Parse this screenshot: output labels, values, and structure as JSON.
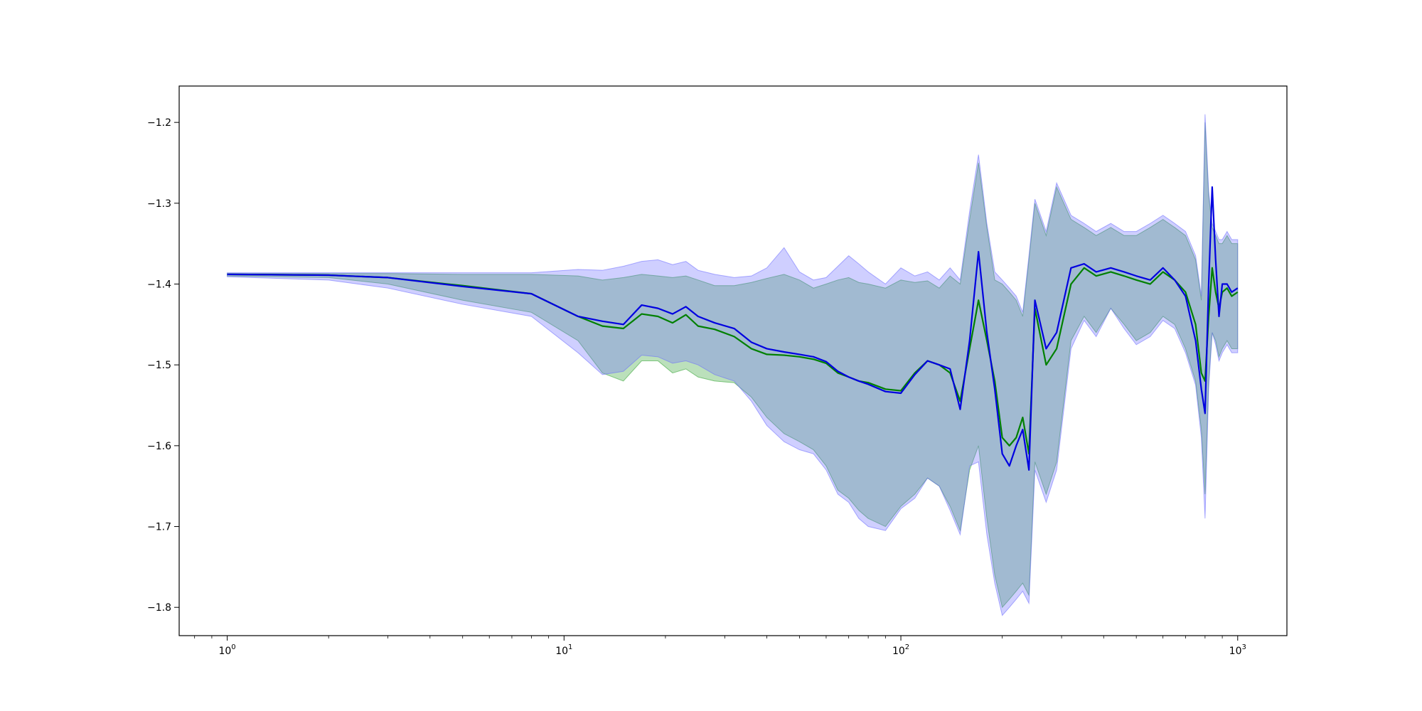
{
  "chart_data": {
    "type": "line",
    "title": "",
    "xlabel": "",
    "ylabel": "",
    "xscale": "log",
    "xlim": [
      0.72,
      1400
    ],
    "ylim": [
      -1.835,
      -1.155
    ],
    "grid": false,
    "legend": "none",
    "x_ticks": [
      {
        "value": 1,
        "base": "10",
        "exp": "0"
      },
      {
        "value": 10,
        "base": "10",
        "exp": "1"
      },
      {
        "value": 100,
        "base": "10",
        "exp": "2"
      },
      {
        "value": 1000,
        "base": "10",
        "exp": "3"
      }
    ],
    "y_ticks": [
      {
        "value": -1.2,
        "label": "−1.2"
      },
      {
        "value": -1.3,
        "label": "−1.3"
      },
      {
        "value": -1.4,
        "label": "−1.4"
      },
      {
        "value": -1.5,
        "label": "−1.5"
      },
      {
        "value": -1.6,
        "label": "−1.6"
      },
      {
        "value": -1.7,
        "label": "−1.7"
      },
      {
        "value": -1.8,
        "label": "−1.8"
      }
    ],
    "series": [
      {
        "color": "#008000",
        "band_color": "#2ca02c",
        "x": [
          1,
          2,
          3,
          5,
          8,
          11,
          13,
          15,
          17,
          19,
          21,
          23,
          25,
          28,
          32,
          36,
          40,
          45,
          50,
          55,
          60,
          65,
          70,
          75,
          80,
          90,
          100,
          110,
          120,
          130,
          140,
          150,
          160,
          170,
          180,
          190,
          200,
          210,
          220,
          230,
          240,
          250,
          270,
          290,
          320,
          350,
          380,
          420,
          460,
          500,
          550,
          600,
          650,
          700,
          750,
          780,
          800,
          820,
          840,
          860,
          880,
          900,
          930,
          960,
          1000
        ],
        "y": [
          -1.388,
          -1.389,
          -1.392,
          -1.402,
          -1.412,
          -1.44,
          -1.452,
          -1.455,
          -1.437,
          -1.44,
          -1.448,
          -1.438,
          -1.452,
          -1.456,
          -1.465,
          -1.48,
          -1.487,
          -1.488,
          -1.49,
          -1.493,
          -1.498,
          -1.51,
          -1.515,
          -1.52,
          -1.522,
          -1.53,
          -1.532,
          -1.51,
          -1.495,
          -1.5,
          -1.51,
          -1.545,
          -1.48,
          -1.42,
          -1.47,
          -1.52,
          -1.59,
          -1.6,
          -1.59,
          -1.565,
          -1.61,
          -1.43,
          -1.5,
          -1.48,
          -1.4,
          -1.38,
          -1.39,
          -1.385,
          -1.39,
          -1.395,
          -1.4,
          -1.385,
          -1.395,
          -1.41,
          -1.45,
          -1.51,
          -1.52,
          -1.44,
          -1.38,
          -1.41,
          -1.43,
          -1.41,
          -1.405,
          -1.415,
          -1.41
        ],
        "lower": [
          -1.39,
          -1.392,
          -1.4,
          -1.42,
          -1.435,
          -1.47,
          -1.51,
          -1.52,
          -1.495,
          -1.495,
          -1.51,
          -1.505,
          -1.515,
          -1.52,
          -1.522,
          -1.54,
          -1.565,
          -1.585,
          -1.595,
          -1.605,
          -1.625,
          -1.655,
          -1.665,
          -1.68,
          -1.69,
          -1.7,
          -1.675,
          -1.66,
          -1.64,
          -1.65,
          -1.675,
          -1.705,
          -1.63,
          -1.6,
          -1.69,
          -1.76,
          -1.8,
          -1.79,
          -1.78,
          -1.77,
          -1.785,
          -1.62,
          -1.66,
          -1.62,
          -1.47,
          -1.44,
          -1.46,
          -1.43,
          -1.45,
          -1.47,
          -1.46,
          -1.44,
          -1.45,
          -1.48,
          -1.52,
          -1.58,
          -1.66,
          -1.52,
          -1.46,
          -1.47,
          -1.49,
          -1.48,
          -1.47,
          -1.48,
          -1.48
        ],
        "upper": [
          -1.387,
          -1.387,
          -1.387,
          -1.388,
          -1.388,
          -1.39,
          -1.395,
          -1.392,
          -1.388,
          -1.39,
          -1.392,
          -1.39,
          -1.395,
          -1.402,
          -1.402,
          -1.398,
          -1.393,
          -1.388,
          -1.395,
          -1.405,
          -1.4,
          -1.395,
          -1.392,
          -1.398,
          -1.4,
          -1.405,
          -1.395,
          -1.398,
          -1.396,
          -1.405,
          -1.39,
          -1.4,
          -1.32,
          -1.25,
          -1.33,
          -1.395,
          -1.4,
          -1.41,
          -1.42,
          -1.44,
          -1.37,
          -1.3,
          -1.34,
          -1.28,
          -1.32,
          -1.33,
          -1.34,
          -1.33,
          -1.34,
          -1.34,
          -1.33,
          -1.32,
          -1.33,
          -1.34,
          -1.37,
          -1.42,
          -1.2,
          -1.29,
          -1.33,
          -1.34,
          -1.35,
          -1.35,
          -1.34,
          -1.35,
          -1.35
        ]
      },
      {
        "color": "#0000e0",
        "band_color": "#6a6aff",
        "x": [
          1,
          2,
          3,
          5,
          8,
          11,
          13,
          15,
          17,
          19,
          21,
          23,
          25,
          28,
          32,
          36,
          40,
          45,
          50,
          55,
          60,
          65,
          70,
          75,
          80,
          90,
          100,
          110,
          120,
          130,
          140,
          150,
          160,
          170,
          180,
          190,
          200,
          210,
          220,
          230,
          240,
          250,
          270,
          290,
          320,
          350,
          380,
          420,
          460,
          500,
          550,
          600,
          650,
          700,
          750,
          780,
          800,
          820,
          840,
          860,
          880,
          900,
          930,
          960,
          1000
        ],
        "y": [
          -1.388,
          -1.389,
          -1.392,
          -1.403,
          -1.412,
          -1.44,
          -1.446,
          -1.45,
          -1.426,
          -1.43,
          -1.437,
          -1.428,
          -1.44,
          -1.448,
          -1.455,
          -1.472,
          -1.48,
          -1.484,
          -1.487,
          -1.49,
          -1.496,
          -1.508,
          -1.515,
          -1.52,
          -1.524,
          -1.533,
          -1.535,
          -1.512,
          -1.495,
          -1.5,
          -1.505,
          -1.555,
          -1.47,
          -1.36,
          -1.46,
          -1.53,
          -1.61,
          -1.625,
          -1.6,
          -1.58,
          -1.63,
          -1.42,
          -1.48,
          -1.46,
          -1.38,
          -1.375,
          -1.385,
          -1.38,
          -1.385,
          -1.39,
          -1.395,
          -1.38,
          -1.395,
          -1.415,
          -1.47,
          -1.53,
          -1.56,
          -1.4,
          -1.28,
          -1.37,
          -1.44,
          -1.4,
          -1.4,
          -1.41,
          -1.405
        ],
        "lower": [
          -1.391,
          -1.395,
          -1.405,
          -1.425,
          -1.44,
          -1.485,
          -1.512,
          -1.508,
          -1.488,
          -1.49,
          -1.498,
          -1.495,
          -1.5,
          -1.512,
          -1.52,
          -1.545,
          -1.575,
          -1.595,
          -1.605,
          -1.61,
          -1.63,
          -1.66,
          -1.67,
          -1.69,
          -1.7,
          -1.705,
          -1.678,
          -1.665,
          -1.64,
          -1.65,
          -1.68,
          -1.71,
          -1.625,
          -1.62,
          -1.71,
          -1.77,
          -1.81,
          -1.8,
          -1.79,
          -1.78,
          -1.795,
          -1.63,
          -1.67,
          -1.63,
          -1.48,
          -1.445,
          -1.465,
          -1.43,
          -1.455,
          -1.475,
          -1.465,
          -1.445,
          -1.455,
          -1.485,
          -1.525,
          -1.59,
          -1.69,
          -1.53,
          -1.46,
          -1.475,
          -1.495,
          -1.485,
          -1.475,
          -1.485,
          -1.485
        ],
        "upper": [
          -1.386,
          -1.386,
          -1.386,
          -1.386,
          -1.386,
          -1.382,
          -1.383,
          -1.378,
          -1.372,
          -1.37,
          -1.376,
          -1.372,
          -1.383,
          -1.388,
          -1.392,
          -1.39,
          -1.38,
          -1.355,
          -1.385,
          -1.395,
          -1.392,
          -1.378,
          -1.365,
          -1.375,
          -1.385,
          -1.4,
          -1.38,
          -1.39,
          -1.385,
          -1.395,
          -1.38,
          -1.395,
          -1.31,
          -1.24,
          -1.325,
          -1.385,
          -1.395,
          -1.405,
          -1.415,
          -1.435,
          -1.365,
          -1.295,
          -1.335,
          -1.275,
          -1.315,
          -1.325,
          -1.335,
          -1.325,
          -1.335,
          -1.335,
          -1.325,
          -1.315,
          -1.325,
          -1.335,
          -1.365,
          -1.415,
          -1.19,
          -1.285,
          -1.325,
          -1.335,
          -1.345,
          -1.345,
          -1.335,
          -1.345,
          -1.345
        ]
      }
    ]
  }
}
